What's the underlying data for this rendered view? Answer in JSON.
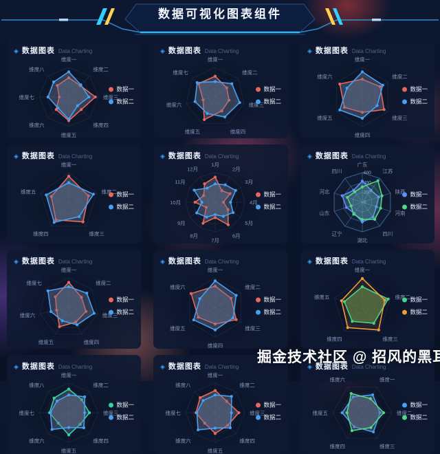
{
  "page": {
    "title": "数据可视化图表组件",
    "watermark": "掘金技术社区 @ 招风的黑耳"
  },
  "panel_header": {
    "icon_glyph": "◈",
    "title": "数据图表",
    "subtitle": "Data Charting"
  },
  "colors": {
    "accent_cyan": "#2fd1ff",
    "accent_yellow": "#ffd34d",
    "series_red": "#e8685a",
    "series_blue": "#47a0f0",
    "series_purple_blue": "#5b8ff9",
    "series_green": "#52d689",
    "series_teal": "#35d2a0",
    "series_orange": "#f59b35",
    "panel_bg": "#0e1a32",
    "axis_label": "#8294b5"
  },
  "chart_data": [
    {
      "type": "radar",
      "position": "row1-col1",
      "max": 100,
      "categories": [
        "维度一",
        "维度二",
        "维度三",
        "维度四",
        "维度五",
        "维度六",
        "维度七",
        "维度八"
      ],
      "series": [
        {
          "name": "数据一",
          "color": "#e8685a",
          "fill": "rgba(108,118,148,0.42)",
          "values": [
            65,
            55,
            90,
            60,
            80,
            60,
            32,
            55
          ]
        },
        {
          "name": "数据二",
          "color": "#47a0f0",
          "fill": "rgba(108,118,148,0.42)",
          "values": [
            85,
            58,
            68,
            42,
            75,
            52,
            70,
            72
          ]
        }
      ]
    },
    {
      "type": "radar",
      "position": "row1-col2",
      "max": 100,
      "categories": [
        "维度一",
        "维度二",
        "维度三",
        "维度四",
        "维度五",
        "维度六",
        "维度七"
      ],
      "series": [
        {
          "name": "数据一",
          "color": "#e8685a",
          "fill": "rgba(108,118,148,0.42)",
          "values": [
            70,
            50,
            48,
            52,
            85,
            42,
            72
          ]
        },
        {
          "name": "数据二",
          "color": "#47a0f0",
          "fill": "rgba(108,118,148,0.42)",
          "values": [
            52,
            72,
            85,
            75,
            62,
            70,
            78
          ]
        }
      ]
    },
    {
      "type": "radar",
      "position": "row1-col3",
      "max": 100,
      "categories": [
        "维度一",
        "维度二",
        "维度三",
        "维度四",
        "维度五",
        "维度六"
      ],
      "series": [
        {
          "name": "数据一",
          "color": "#e8685a",
          "fill": "rgba(108,118,148,0.42)",
          "values": [
            60,
            70,
            85,
            52,
            70,
            88
          ]
        },
        {
          "name": "数据二",
          "color": "#47a0f0",
          "fill": "rgba(108,118,148,0.42)",
          "values": [
            85,
            80,
            58,
            72,
            88,
            60
          ]
        }
      ]
    },
    {
      "type": "radar",
      "position": "row2-col1",
      "max": 100,
      "categories": [
        "维度一",
        "维度二",
        "维度三",
        "维度四",
        "维度五"
      ],
      "series": [
        {
          "name": "数据一",
          "color": "#e8685a",
          "fill": "rgba(108,118,148,0.42)",
          "values": [
            88,
            70,
            82,
            74,
            62
          ]
        },
        {
          "name": "数据二",
          "color": "#47a0f0",
          "fill": "rgba(108,118,148,0.42)",
          "values": [
            66,
            88,
            60,
            84,
            80
          ]
        }
      ]
    },
    {
      "type": "radar",
      "position": "row2-col2",
      "max": 100,
      "categories": [
        "1月",
        "2月",
        "3月",
        "4月",
        "5月",
        "6月",
        "7月",
        "8月",
        "9月",
        "10月",
        "11月",
        "12月"
      ],
      "series": [
        {
          "name": "数据一",
          "color": "#e8685a",
          "fill": "rgba(108,118,148,0.42)",
          "values": [
            85,
            45,
            58,
            28,
            50,
            88,
            52,
            82,
            35,
            68,
            45,
            72
          ]
        },
        {
          "name": "数据二",
          "color": "#47a0f0",
          "fill": "rgba(108,118,148,0.42)",
          "values": [
            62,
            68,
            80,
            52,
            70,
            55,
            42,
            58,
            72,
            45,
            82,
            55
          ]
        }
      ]
    },
    {
      "type": "radar",
      "position": "row2-col3",
      "max": 600,
      "grid_strong": true,
      "tick_labels": [
        600,
        400,
        200,
        0
      ],
      "categories": [
        "广东",
        "江苏",
        "陕西",
        "河南",
        "四川",
        "湖北",
        "辽宁",
        "山东",
        "河北",
        "四川"
      ],
      "series": [
        {
          "name": "数据一",
          "color": "#5b8ff9",
          "fill": "rgba(115,160,220,0.32)",
          "values": [
            430,
            300,
            350,
            300,
            370,
            400,
            280,
            340,
            430,
            300
          ]
        },
        {
          "name": "数据二",
          "color": "#52d689",
          "fill": "rgba(95,200,150,0.20)",
          "values": [
            310,
            540,
            420,
            390,
            430,
            350,
            300,
            240,
            320,
            260
          ]
        }
      ]
    },
    {
      "type": "radar",
      "position": "row3-col1",
      "max": 100,
      "categories": [
        "维度一",
        "维度二",
        "维度三",
        "维度四",
        "维度五",
        "维度六",
        "维度七"
      ],
      "series": [
        {
          "name": "数据一",
          "color": "#e8685a",
          "fill": "rgba(108,118,148,0.42)",
          "values": [
            85,
            55,
            60,
            55,
            72,
            42,
            58
          ]
        },
        {
          "name": "数据二",
          "color": "#47a0f0",
          "fill": "rgba(108,118,148,0.42)",
          "values": [
            70,
            78,
            88,
            65,
            50,
            62,
            90
          ]
        }
      ]
    },
    {
      "type": "radar",
      "position": "row3-col2",
      "max": 100,
      "categories": [
        "维度一",
        "维度二",
        "维度三",
        "维度四",
        "维度五",
        "维度六"
      ],
      "series": [
        {
          "name": "数据一",
          "color": "#e8685a",
          "fill": "rgba(108,118,148,0.42)",
          "values": [
            72,
            62,
            82,
            56,
            66,
            94
          ]
        },
        {
          "name": "数据二",
          "color": "#47a0f0",
          "fill": "rgba(108,118,148,0.42)",
          "values": [
            90,
            82,
            70,
            76,
            84,
            60
          ]
        }
      ]
    },
    {
      "type": "radar",
      "position": "row3-col3",
      "max": 100,
      "categories": [
        "维度一",
        "维度二",
        "维度三",
        "维度四",
        "维度五"
      ],
      "series": [
        {
          "name": "数据一",
          "color": "#3fd68f",
          "fill": "rgba(100,155,80,0.55)",
          "values": [
            70,
            92,
            66,
            58,
            64
          ]
        },
        {
          "name": "数据二",
          "color": "#f59b35",
          "fill": "rgba(240,160,60,0.10)",
          "values": [
            98,
            80,
            94,
            84,
            74
          ]
        }
      ]
    },
    {
      "type": "radar",
      "position": "row4-col1",
      "max": 100,
      "categories": [
        "维度一",
        "维度二",
        "维度三",
        "维度四",
        "维度五",
        "维度六",
        "维度七",
        "维度八"
      ],
      "series": [
        {
          "name": "数据一",
          "color": "#35d2a0",
          "fill": "rgba(108,118,148,0.42)",
          "values": [
            80,
            62,
            70,
            55,
            75,
            50,
            65,
            70
          ]
        },
        {
          "name": "数据二",
          "color": "#47a0f0",
          "fill": "rgba(108,118,148,0.42)",
          "values": [
            60,
            76,
            54,
            72,
            50,
            80,
            62,
            56
          ]
        }
      ]
    },
    {
      "type": "radar",
      "position": "row4-col2",
      "max": 100,
      "categories": [
        "维度一",
        "维度二",
        "维度三",
        "维度四",
        "维度五",
        "维度六",
        "维度七",
        "维度八"
      ],
      "series": [
        {
          "name": "数据一",
          "color": "#e8685a",
          "fill": "rgba(108,118,148,0.42)",
          "values": [
            75,
            55,
            80,
            60,
            70,
            50,
            65,
            72
          ]
        },
        {
          "name": "数据二",
          "color": "#47a0f0",
          "fill": "rgba(108,118,148,0.42)",
          "values": [
            60,
            78,
            55,
            72,
            52,
            82,
            62,
            58
          ]
        }
      ]
    },
    {
      "type": "radar",
      "position": "row4-col3",
      "max": 100,
      "start_angle": 60,
      "categories": [
        "维度一",
        "维度二",
        "维度三",
        "维度四",
        "维度五",
        "维度六"
      ],
      "series": [
        {
          "name": "数据一",
          "color": "#47a0f0",
          "fill": "rgba(108,118,148,0.42)",
          "values": [
            70,
            60,
            75,
            55,
            68,
            62
          ]
        },
        {
          "name": "数据二",
          "color": "#52d689",
          "fill": "rgba(108,118,148,0.42)",
          "values": [
            55,
            72,
            58,
            70,
            52,
            75
          ]
        }
      ]
    }
  ]
}
